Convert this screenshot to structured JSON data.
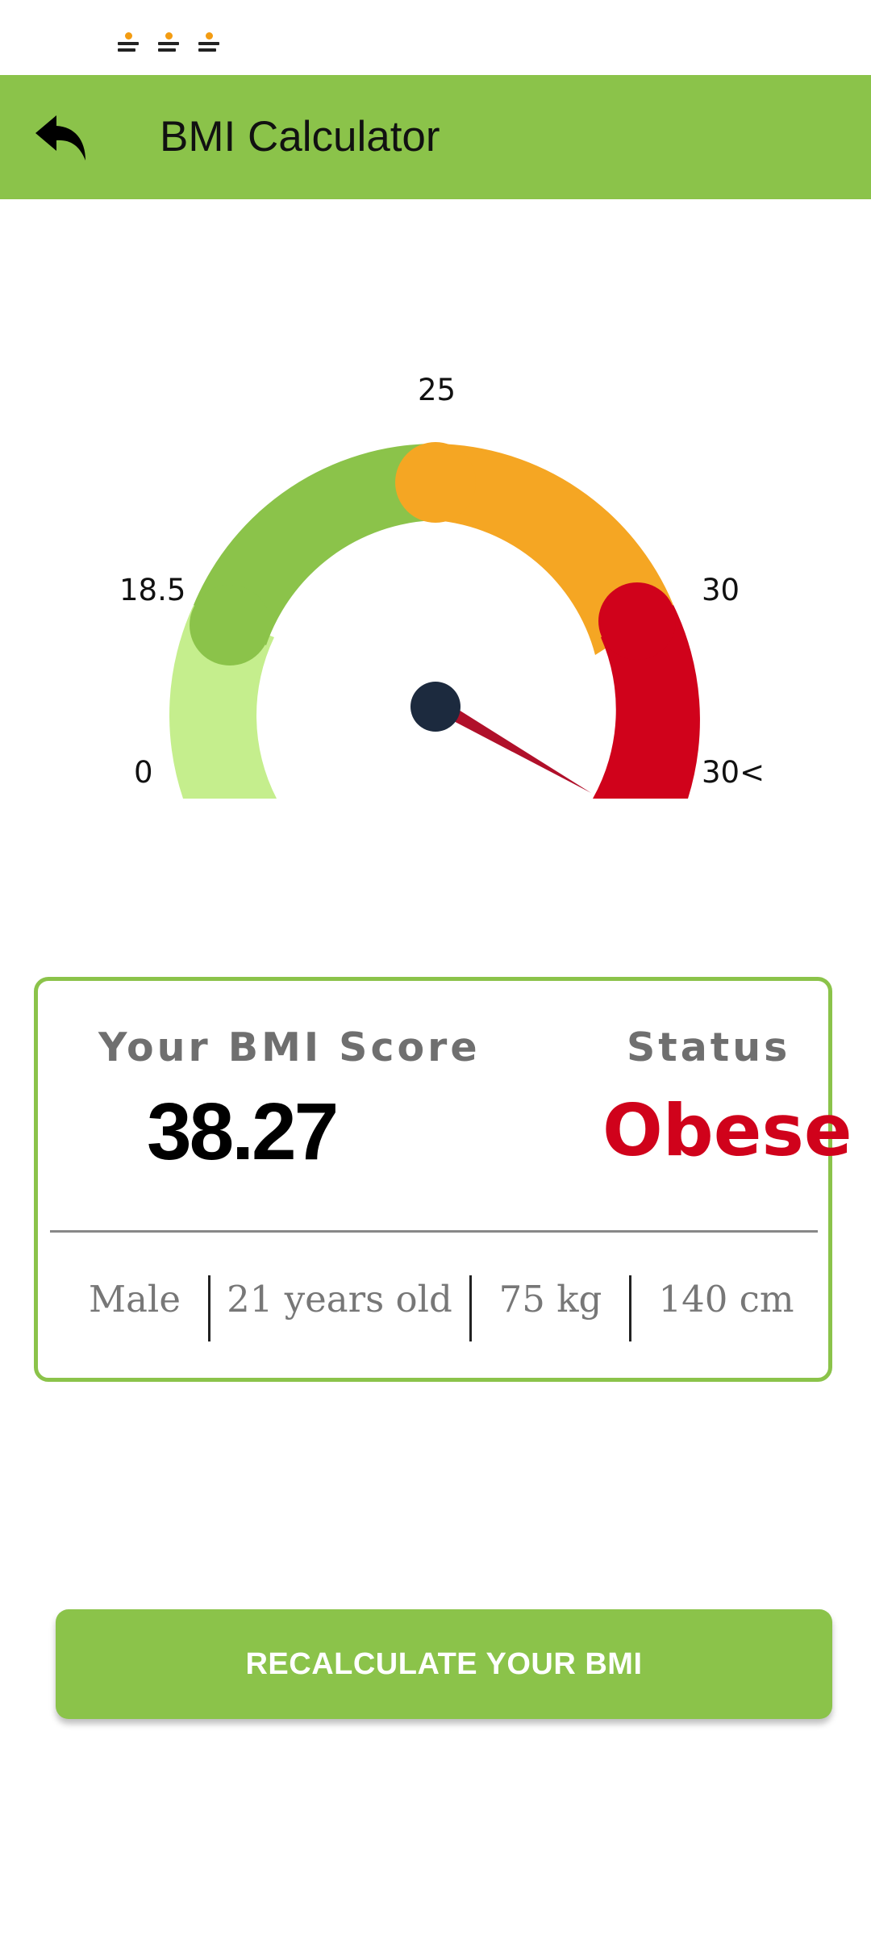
{
  "app": {
    "title": "BMI Calculator"
  },
  "colors": {
    "primary": "#8bc34a",
    "underweight": "#c5ee8d",
    "normal": "#8bc34a",
    "overweight": "#f5a623",
    "obese": "#d0021b",
    "needle": "#b0102a",
    "hub": "#1c2a3e"
  },
  "gauge": {
    "labels": {
      "min": "0",
      "normal_start": "18.5",
      "overweight_start": "25",
      "obese_start": "30",
      "max": "30<"
    },
    "value": 38.27
  },
  "result": {
    "score_label": "Your BMI Score",
    "score_value": "38.27",
    "status_label": "Status",
    "status_value": "Obese",
    "gender": "Male",
    "age": "21 years old",
    "weight": "75 kg",
    "height": "140 cm"
  },
  "actions": {
    "recalculate_label": "RECALCULATE YOUR BMI"
  },
  "icons": {
    "back": "reply-arrow-icon",
    "notifications": "news-app-notification-icon"
  }
}
